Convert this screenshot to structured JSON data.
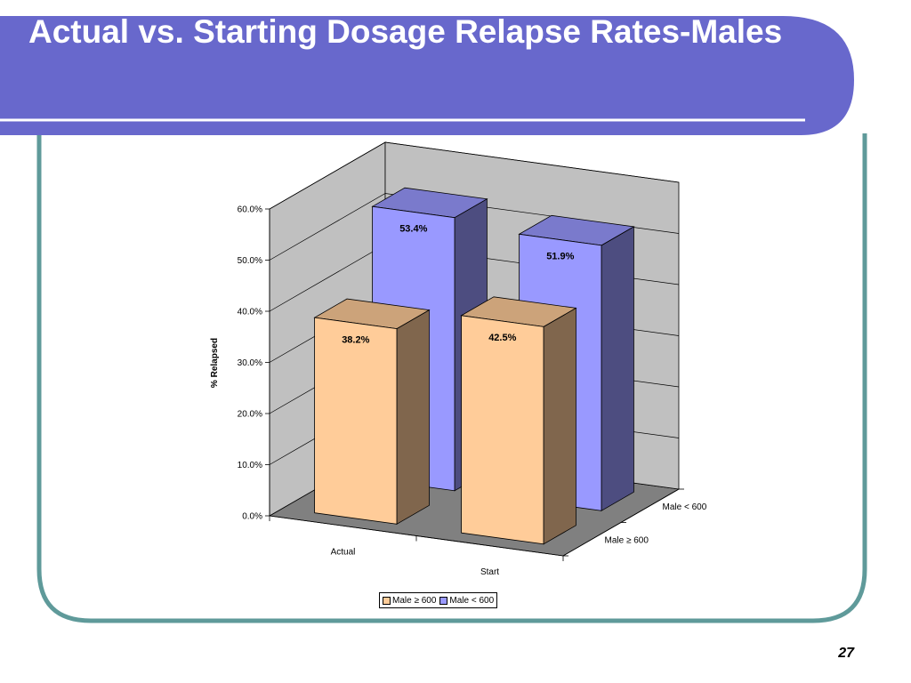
{
  "slide": {
    "title": "Actual vs. Starting Dosage Relapse Rates-Males",
    "page_number": "27"
  },
  "colors": {
    "header_bg": "#6868CC",
    "frame_border": "#5F9A9A",
    "series_orange": "#FFCC99",
    "series_blue": "#9999FF",
    "floor": "#808080",
    "walls": "#C0C0C0"
  },
  "chart_data": {
    "type": "bar",
    "title": "",
    "ylabel": "% Relapsed",
    "xlabel": "",
    "categories": [
      "Actual",
      "Start"
    ],
    "depth_categories": [
      "Male ≥ 600",
      "Male < 600"
    ],
    "series": [
      {
        "name": "Male ≥ 600",
        "values": [
          38.2,
          42.5
        ],
        "labels": [
          "38.2%",
          "42.5%"
        ],
        "color": "#FFCC99"
      },
      {
        "name": "Male < 600",
        "values": [
          53.4,
          51.9
        ],
        "labels": [
          "53.4%",
          "51.9%"
        ],
        "color": "#9999FF"
      }
    ],
    "ylim": [
      0,
      60
    ],
    "yticks": [
      "0.0%",
      "10.0%",
      "20.0%",
      "30.0%",
      "40.0%",
      "50.0%",
      "60.0%"
    ],
    "grid": true,
    "legend_position": "bottom",
    "style": "3d"
  }
}
